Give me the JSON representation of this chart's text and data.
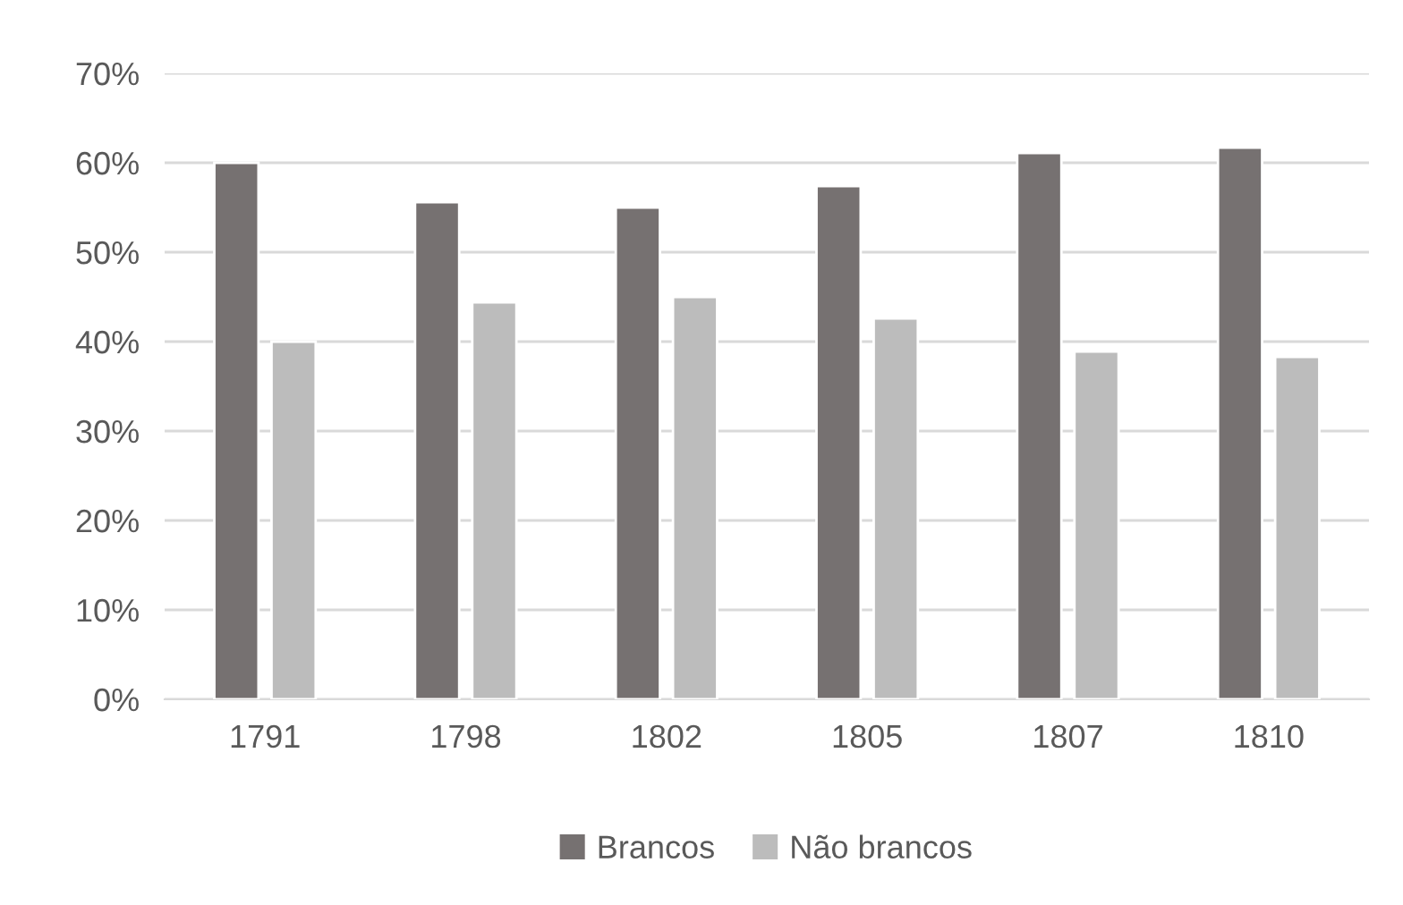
{
  "chart_data": {
    "type": "bar",
    "categories": [
      "1791",
      "1798",
      "1802",
      "1805",
      "1807",
      "1810"
    ],
    "series": [
      {
        "name": "Brancos",
        "color": "#767171",
        "values": [
          60,
          55.6,
          55,
          57.4,
          61.1,
          61.7
        ]
      },
      {
        "name": "Não brancos",
        "color": "#bcbcbc",
        "values": [
          40,
          44.4,
          45,
          42.6,
          38.9,
          38.3
        ]
      }
    ],
    "ylim": [
      0,
      70
    ],
    "yticks": [
      {
        "value": 0,
        "label": "0%"
      },
      {
        "value": 10,
        "label": "10%"
      },
      {
        "value": 20,
        "label": "20%"
      },
      {
        "value": 30,
        "label": "30%"
      },
      {
        "value": 40,
        "label": "40%"
      },
      {
        "value": 50,
        "label": "50%"
      },
      {
        "value": 60,
        "label": "60%"
      },
      {
        "value": 70,
        "label": "70%"
      }
    ],
    "grid": "y",
    "legend": "bottom"
  }
}
